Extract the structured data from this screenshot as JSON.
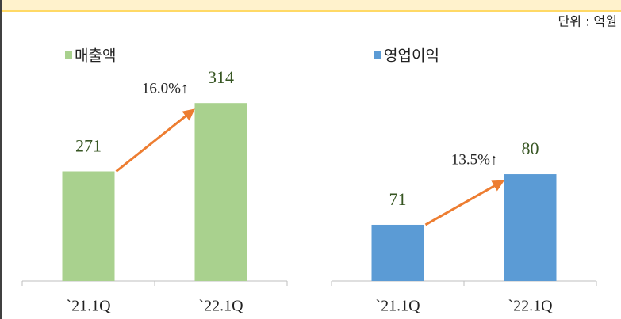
{
  "unit_label": "단위 : 억원",
  "chart_data": [
    {
      "type": "bar",
      "categories": [
        "`21.1Q",
        "`22.1Q"
      ],
      "series": [
        {
          "name": "매출액",
          "color": "#a9d18e",
          "values": [
            271,
            314
          ]
        }
      ],
      "annotation": "16.0%↑",
      "ylim": [
        202,
        340
      ]
    },
    {
      "type": "bar",
      "categories": [
        "`21.1Q",
        "`22.1Q"
      ],
      "series": [
        {
          "name": "영업이익",
          "color": "#5b9bd5",
          "values": [
            71,
            80
          ]
        }
      ],
      "annotation": "13.5%↑",
      "ylim": [
        61,
        100
      ]
    }
  ]
}
